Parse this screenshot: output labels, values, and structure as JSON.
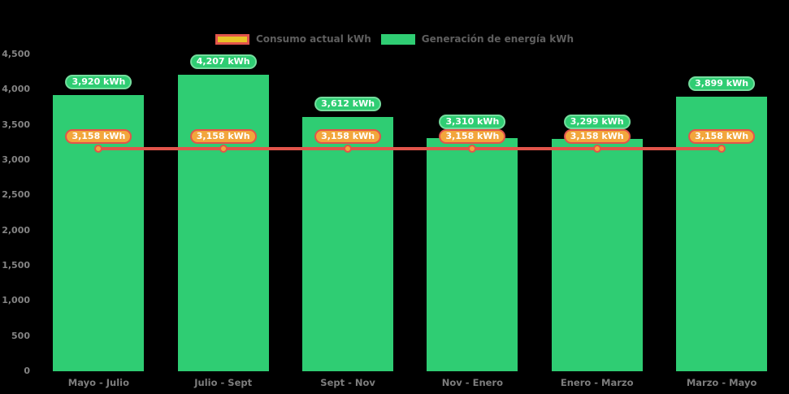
{
  "background": "#000000",
  "legend": {
    "items": [
      {
        "label": "Consumo actual kWh",
        "swatch_fill": "#e9c227",
        "swatch_border": "#e2544b"
      },
      {
        "label": "Generación de energía kWh",
        "swatch_fill": "#2fcd73",
        "swatch_border": "#2fcd73"
      }
    ]
  },
  "chart_data": {
    "type": "bar",
    "title": "",
    "xlabel": "",
    "ylabel": "",
    "categories": [
      "Mayo - Julio",
      "Julio - Sept",
      "Sept - Nov",
      "Nov - Enero",
      "Enero - Marzo",
      "Marzo - Mayo"
    ],
    "series": [
      {
        "name": "Generación de energía kWh",
        "type": "bar",
        "color": "#2fcd73",
        "label_fill": "#2fcd73",
        "label_border": "#74dd9d",
        "values": [
          3920,
          4207,
          3612,
          3310,
          3299,
          3899
        ],
        "labels": [
          "3,920 kWh",
          "4,207 kWh",
          "3,612 kWh",
          "3,310 kWh",
          "3,299 kWh",
          "3,899 kWh"
        ]
      },
      {
        "name": "Consumo actual kWh",
        "type": "line",
        "color": "#e2544b",
        "marker_fill": "#f2a63c",
        "label_fill": "#f2a63c",
        "label_border": "#e2544b",
        "values": [
          3158,
          3158,
          3158,
          3158,
          3158,
          3158
        ],
        "labels": [
          "3,158 kWh",
          "3,158 kWh",
          "3,158 kWh",
          "3,158 kWh",
          "3,158 kWh",
          "3,158 kWh"
        ]
      }
    ],
    "ylim": [
      0,
      4500
    ],
    "yticks": [
      {
        "value": 0,
        "label": "0"
      },
      {
        "value": 500,
        "label": "500"
      },
      {
        "value": 1000,
        "label": "1,000"
      },
      {
        "value": 1500,
        "label": "1,500"
      },
      {
        "value": 2000,
        "label": "2,000"
      },
      {
        "value": 2500,
        "label": "2,500"
      },
      {
        "value": 3000,
        "label": "3,000"
      },
      {
        "value": 3500,
        "label": "3,500"
      },
      {
        "value": 4000,
        "label": "4,000"
      },
      {
        "value": 4500,
        "label": "4,500"
      }
    ],
    "grid": false,
    "legend_position": "top-center",
    "axis_text_color": "#848484",
    "legend_text_color": "#5f5f5f"
  }
}
